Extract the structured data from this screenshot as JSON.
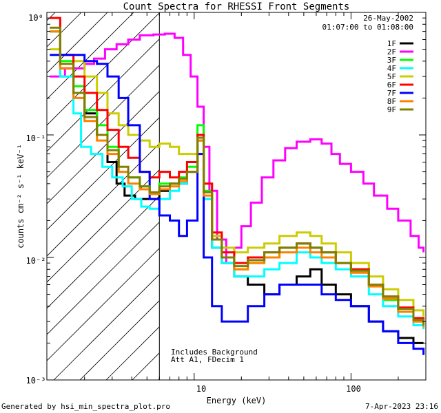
{
  "chart_data": {
    "type": "line",
    "title": "Count Spectra for RHESSI Front Segments",
    "xlabel": "Energy (keV)",
    "ylabel": "counts cm⁻² s⁻¹ keV⁻¹",
    "x_scale": "log",
    "y_scale": "log",
    "xlim": [
      1.15,
      300
    ],
    "ylim": [
      0.001,
      1.0
    ],
    "x_tick_labels": [
      "10",
      "100"
    ],
    "y_tick_labels": [
      "10⁻³",
      "10⁻²",
      "10⁻¹",
      "10⁰"
    ],
    "date": "26-May-2002",
    "time_range": "01:07:00 to 01:08:00",
    "hatched_region_upper_keV": 6.0,
    "annotation_lines": [
      "Includes Background",
      "Att A1, FDecim 1"
    ],
    "footer_left": "Generated by hsi_min_spectra_plot.pro",
    "footer_right": "7-Apr-2023 23:16",
    "series": [
      {
        "name": "1F",
        "color": "#000000",
        "points": [
          [
            1.2,
            0.7
          ],
          [
            1.4,
            0.35
          ],
          [
            1.7,
            0.22
          ],
          [
            2.0,
            0.15
          ],
          [
            2.4,
            0.1
          ],
          [
            2.8,
            0.06
          ],
          [
            3.2,
            0.04
          ],
          [
            3.6,
            0.032
          ],
          [
            4.2,
            0.03
          ],
          [
            4.8,
            0.03
          ],
          [
            5.5,
            0.03
          ],
          [
            6.0,
            0.035
          ],
          [
            7,
            0.04
          ],
          [
            8,
            0.04
          ],
          [
            9,
            0.05
          ],
          [
            10.5,
            0.09
          ],
          [
            11.5,
            0.03
          ],
          [
            13,
            0.012
          ],
          [
            15,
            0.009
          ],
          [
            18,
            0.007
          ],
          [
            22,
            0.006
          ],
          [
            28,
            0.005
          ],
          [
            35,
            0.006
          ],
          [
            45,
            0.007
          ],
          [
            55,
            0.008
          ],
          [
            65,
            0.006
          ],
          [
            80,
            0.005
          ],
          [
            100,
            0.004
          ],
          [
            130,
            0.003
          ],
          [
            160,
            0.0025
          ],
          [
            200,
            0.0022
          ],
          [
            250,
            0.002
          ],
          [
            290,
            0.002
          ]
        ]
      },
      {
        "name": "2F",
        "color": "#ff00ff",
        "points": [
          [
            1.2,
            0.3
          ],
          [
            1.3,
            0.3
          ],
          [
            1.5,
            0.35
          ],
          [
            1.8,
            0.35
          ],
          [
            2.0,
            0.38
          ],
          [
            2.3,
            0.42
          ],
          [
            2.7,
            0.5
          ],
          [
            3.2,
            0.55
          ],
          [
            3.8,
            0.6
          ],
          [
            4.5,
            0.65
          ],
          [
            5.5,
            0.66
          ],
          [
            6.5,
            0.67
          ],
          [
            7.5,
            0.62
          ],
          [
            8.5,
            0.45
          ],
          [
            9.5,
            0.3
          ],
          [
            10.5,
            0.17
          ],
          [
            11.5,
            0.08
          ],
          [
            12.5,
            0.035
          ],
          [
            14,
            0.014
          ],
          [
            16,
            0.009
          ],
          [
            18,
            0.012
          ],
          [
            20,
            0.018
          ],
          [
            23,
            0.028
          ],
          [
            27,
            0.045
          ],
          [
            32,
            0.062
          ],
          [
            38,
            0.078
          ],
          [
            45,
            0.088
          ],
          [
            55,
            0.092
          ],
          [
            65,
            0.085
          ],
          [
            75,
            0.07
          ],
          [
            85,
            0.058
          ],
          [
            100,
            0.05
          ],
          [
            120,
            0.04
          ],
          [
            140,
            0.032
          ],
          [
            170,
            0.025
          ],
          [
            200,
            0.02
          ],
          [
            240,
            0.015
          ],
          [
            270,
            0.012
          ],
          [
            290,
            0.011
          ]
        ]
      },
      {
        "name": "3F",
        "color": "#00ff00",
        "points": [
          [
            1.2,
            0.7
          ],
          [
            1.4,
            0.4
          ],
          [
            1.7,
            0.25
          ],
          [
            2.0,
            0.16
          ],
          [
            2.4,
            0.12
          ],
          [
            2.8,
            0.08
          ],
          [
            3.3,
            0.05
          ],
          [
            3.8,
            0.045
          ],
          [
            4.5,
            0.038
          ],
          [
            5.2,
            0.033
          ],
          [
            6.0,
            0.04
          ],
          [
            7,
            0.04
          ],
          [
            8,
            0.045
          ],
          [
            9,
            0.055
          ],
          [
            10.5,
            0.12
          ],
          [
            11.5,
            0.035
          ],
          [
            13,
            0.015
          ],
          [
            15,
            0.01
          ],
          [
            18,
            0.008
          ],
          [
            22,
            0.009
          ],
          [
            28,
            0.01
          ],
          [
            35,
            0.012
          ],
          [
            45,
            0.013
          ],
          [
            55,
            0.012
          ],
          [
            65,
            0.011
          ],
          [
            80,
            0.009
          ],
          [
            100,
            0.008
          ],
          [
            130,
            0.006
          ],
          [
            160,
            0.0045
          ],
          [
            200,
            0.0038
          ],
          [
            250,
            0.003
          ],
          [
            290,
            0.0028
          ]
        ]
      },
      {
        "name": "4F",
        "color": "#00ffff",
        "points": [
          [
            1.2,
            0.7
          ],
          [
            1.4,
            0.3
          ],
          [
            1.7,
            0.15
          ],
          [
            1.9,
            0.08
          ],
          [
            2.2,
            0.07
          ],
          [
            2.6,
            0.055
          ],
          [
            3.0,
            0.045
          ],
          [
            3.5,
            0.038
          ],
          [
            4.0,
            0.03
          ],
          [
            4.6,
            0.026
          ],
          [
            5.2,
            0.025
          ],
          [
            6.0,
            0.03
          ],
          [
            7,
            0.035
          ],
          [
            8,
            0.04
          ],
          [
            9,
            0.05
          ],
          [
            10.5,
            0.09
          ],
          [
            11.5,
            0.03
          ],
          [
            13,
            0.012
          ],
          [
            15,
            0.009
          ],
          [
            18,
            0.007
          ],
          [
            22,
            0.007
          ],
          [
            28,
            0.008
          ],
          [
            35,
            0.009
          ],
          [
            45,
            0.011
          ],
          [
            55,
            0.01
          ],
          [
            65,
            0.009
          ],
          [
            80,
            0.008
          ],
          [
            100,
            0.007
          ],
          [
            130,
            0.005
          ],
          [
            160,
            0.004
          ],
          [
            200,
            0.0033
          ],
          [
            250,
            0.0028
          ],
          [
            290,
            0.0026
          ]
        ]
      },
      {
        "name": "5F",
        "color": "#cccc00",
        "points": [
          [
            1.2,
            0.5
          ],
          [
            1.4,
            0.45
          ],
          [
            1.7,
            0.4
          ],
          [
            2.0,
            0.3
          ],
          [
            2.4,
            0.22
          ],
          [
            2.8,
            0.15
          ],
          [
            3.3,
            0.12
          ],
          [
            3.8,
            0.1
          ],
          [
            4.5,
            0.09
          ],
          [
            5.2,
            0.08
          ],
          [
            6.0,
            0.085
          ],
          [
            7,
            0.08
          ],
          [
            8,
            0.07
          ],
          [
            9,
            0.07
          ],
          [
            10.5,
            0.1
          ],
          [
            11.5,
            0.04
          ],
          [
            13,
            0.015
          ],
          [
            15,
            0.012
          ],
          [
            18,
            0.011
          ],
          [
            22,
            0.012
          ],
          [
            28,
            0.013
          ],
          [
            35,
            0.015
          ],
          [
            45,
            0.016
          ],
          [
            55,
            0.015
          ],
          [
            65,
            0.013
          ],
          [
            80,
            0.011
          ],
          [
            100,
            0.009
          ],
          [
            130,
            0.007
          ],
          [
            160,
            0.0055
          ],
          [
            200,
            0.0045
          ],
          [
            250,
            0.0037
          ],
          [
            290,
            0.0033
          ]
        ]
      },
      {
        "name": "6F",
        "color": "#ff0000",
        "points": [
          [
            1.2,
            0.9
          ],
          [
            1.4,
            0.45
          ],
          [
            1.7,
            0.3
          ],
          [
            2.0,
            0.22
          ],
          [
            2.4,
            0.16
          ],
          [
            2.8,
            0.11
          ],
          [
            3.3,
            0.08
          ],
          [
            3.8,
            0.065
          ],
          [
            4.5,
            0.05
          ],
          [
            5.2,
            0.045
          ],
          [
            6.0,
            0.05
          ],
          [
            7,
            0.045
          ],
          [
            8,
            0.05
          ],
          [
            9,
            0.06
          ],
          [
            10.5,
            0.1
          ],
          [
            11.5,
            0.04
          ],
          [
            13,
            0.016
          ],
          [
            15,
            0.011
          ],
          [
            18,
            0.009
          ],
          [
            22,
            0.01
          ],
          [
            28,
            0.011
          ],
          [
            35,
            0.012
          ],
          [
            45,
            0.013
          ],
          [
            55,
            0.012
          ],
          [
            65,
            0.011
          ],
          [
            80,
            0.009
          ],
          [
            100,
            0.008
          ],
          [
            130,
            0.006
          ],
          [
            160,
            0.0048
          ],
          [
            200,
            0.0039
          ],
          [
            250,
            0.0032
          ],
          [
            290,
            0.003
          ]
        ]
      },
      {
        "name": "7F",
        "color": "#0000ff",
        "points": [
          [
            1.2,
            0.45
          ],
          [
            1.4,
            0.45
          ],
          [
            1.7,
            0.45
          ],
          [
            2.0,
            0.4
          ],
          [
            2.4,
            0.38
          ],
          [
            2.8,
            0.3
          ],
          [
            3.3,
            0.2
          ],
          [
            3.8,
            0.12
          ],
          [
            4.5,
            0.05
          ],
          [
            5.2,
            0.03
          ],
          [
            6.0,
            0.022
          ],
          [
            7,
            0.02
          ],
          [
            8,
            0.015
          ],
          [
            9,
            0.02
          ],
          [
            10.5,
            0.07
          ],
          [
            11.5,
            0.01
          ],
          [
            13,
            0.004
          ],
          [
            15,
            0.003
          ],
          [
            18,
            0.003
          ],
          [
            22,
            0.004
          ],
          [
            28,
            0.005
          ],
          [
            35,
            0.006
          ],
          [
            45,
            0.006
          ],
          [
            55,
            0.006
          ],
          [
            65,
            0.005
          ],
          [
            80,
            0.0045
          ],
          [
            100,
            0.004
          ],
          [
            130,
            0.003
          ],
          [
            160,
            0.0025
          ],
          [
            200,
            0.002
          ],
          [
            250,
            0.0018
          ],
          [
            290,
            0.0016
          ]
        ]
      },
      {
        "name": "8F",
        "color": "#ff8000",
        "points": [
          [
            1.2,
            0.7
          ],
          [
            1.4,
            0.35
          ],
          [
            1.7,
            0.2
          ],
          [
            2.0,
            0.13
          ],
          [
            2.4,
            0.09
          ],
          [
            2.8,
            0.07
          ],
          [
            3.3,
            0.05
          ],
          [
            3.8,
            0.04
          ],
          [
            4.5,
            0.036
          ],
          [
            5.2,
            0.033
          ],
          [
            6.0,
            0.036
          ],
          [
            7,
            0.038
          ],
          [
            8,
            0.042
          ],
          [
            9,
            0.05
          ],
          [
            10.5,
            0.09
          ],
          [
            11.5,
            0.032
          ],
          [
            13,
            0.014
          ],
          [
            15,
            0.01
          ],
          [
            18,
            0.008
          ],
          [
            22,
            0.009
          ],
          [
            28,
            0.01
          ],
          [
            35,
            0.011
          ],
          [
            45,
            0.012
          ],
          [
            55,
            0.011
          ],
          [
            65,
            0.01
          ],
          [
            80,
            0.009
          ],
          [
            100,
            0.0075
          ],
          [
            130,
            0.0058
          ],
          [
            160,
            0.0046
          ],
          [
            200,
            0.0036
          ],
          [
            250,
            0.003
          ],
          [
            290,
            0.0027
          ]
        ]
      },
      {
        "name": "9F",
        "color": "#808000",
        "points": [
          [
            1.2,
            0.75
          ],
          [
            1.4,
            0.38
          ],
          [
            1.7,
            0.22
          ],
          [
            2.0,
            0.14
          ],
          [
            2.4,
            0.1
          ],
          [
            2.8,
            0.075
          ],
          [
            3.3,
            0.055
          ],
          [
            3.8,
            0.045
          ],
          [
            4.5,
            0.038
          ],
          [
            5.2,
            0.034
          ],
          [
            6.0,
            0.038
          ],
          [
            7,
            0.04
          ],
          [
            8,
            0.044
          ],
          [
            9,
            0.05
          ],
          [
            10.5,
            0.095
          ],
          [
            11.5,
            0.034
          ],
          [
            13,
            0.014
          ],
          [
            15,
            0.01
          ],
          [
            18,
            0.0085
          ],
          [
            22,
            0.0095
          ],
          [
            28,
            0.011
          ],
          [
            35,
            0.012
          ],
          [
            45,
            0.013
          ],
          [
            55,
            0.012
          ],
          [
            65,
            0.011
          ],
          [
            80,
            0.009
          ],
          [
            100,
            0.0078
          ],
          [
            130,
            0.006
          ],
          [
            160,
            0.0048
          ],
          [
            200,
            0.0038
          ],
          [
            250,
            0.0031
          ],
          [
            290,
            0.0028
          ]
        ]
      }
    ]
  }
}
